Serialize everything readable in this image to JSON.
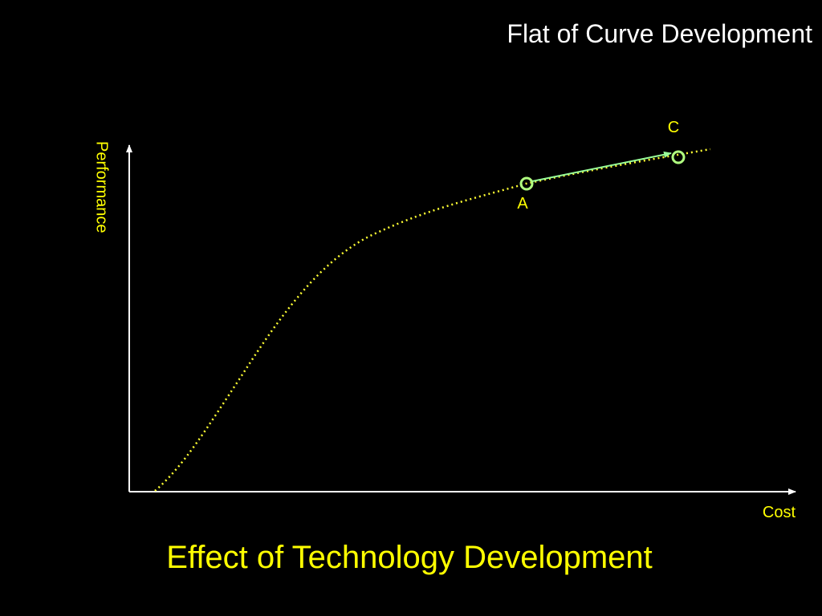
{
  "header": {
    "title": "Flat of Curve Development"
  },
  "diagram": {
    "y_axis_label": "Performance",
    "x_axis_label": "Cost",
    "points": [
      {
        "label": "A"
      },
      {
        "label": "C"
      }
    ],
    "caption": "Effect of Technology Development"
  }
}
